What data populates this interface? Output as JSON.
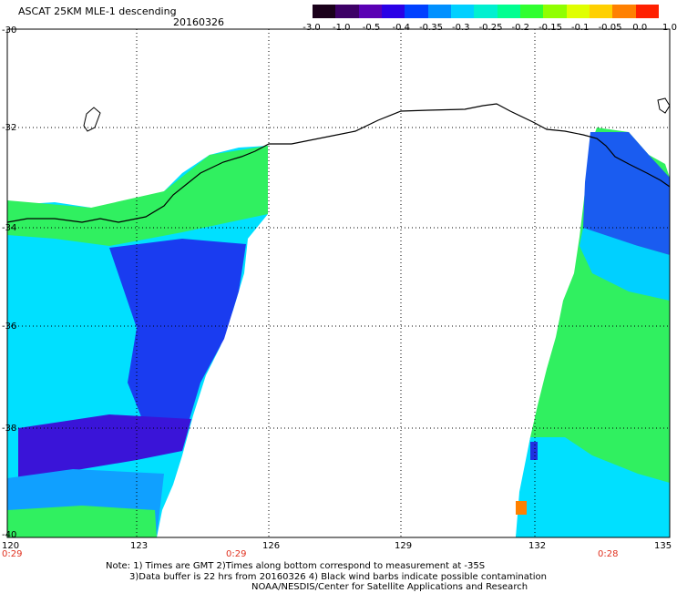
{
  "header": {
    "title": "ASCAT 25KM MLE-1 descending",
    "date": "20160326"
  },
  "colorbar": {
    "labels": [
      "-3.0",
      "-1.0",
      "-0.5",
      "-0.4",
      "-0.35",
      "-0.3",
      "-0.25",
      "-0.2",
      "-0.15",
      "-0.1",
      "-0.05",
      "0.0",
      "1.0"
    ],
    "colors": [
      "#1a001a",
      "#3d0066",
      "#5a00b4",
      "#2a00e6",
      "#0040ff",
      "#0090ff",
      "#00d0ff",
      "#00f0d0",
      "#00ff90",
      "#30ff30",
      "#90ff00",
      "#e0ff00",
      "#ffd000",
      "#ff8000",
      "#ff2000"
    ]
  },
  "axes": {
    "lat_labels": [
      "-30",
      "-32",
      "-34",
      "-36",
      "-38",
      "-40"
    ],
    "lon_labels": [
      "120",
      "123",
      "126",
      "129",
      "132",
      "135"
    ],
    "time_labels": [
      "0:29",
      "0:29",
      "0:28"
    ]
  },
  "notes": {
    "line1": "Note: 1) Times are GMT 2)Times along bottom correspond to measurement at -35S",
    "line2": "3)Data buffer is 22 hrs from 20160326 4) Black wind barbs indicate possible contamination",
    "line3": "NOAA/NESDIS/Center for Satellite Applications and Research"
  }
}
